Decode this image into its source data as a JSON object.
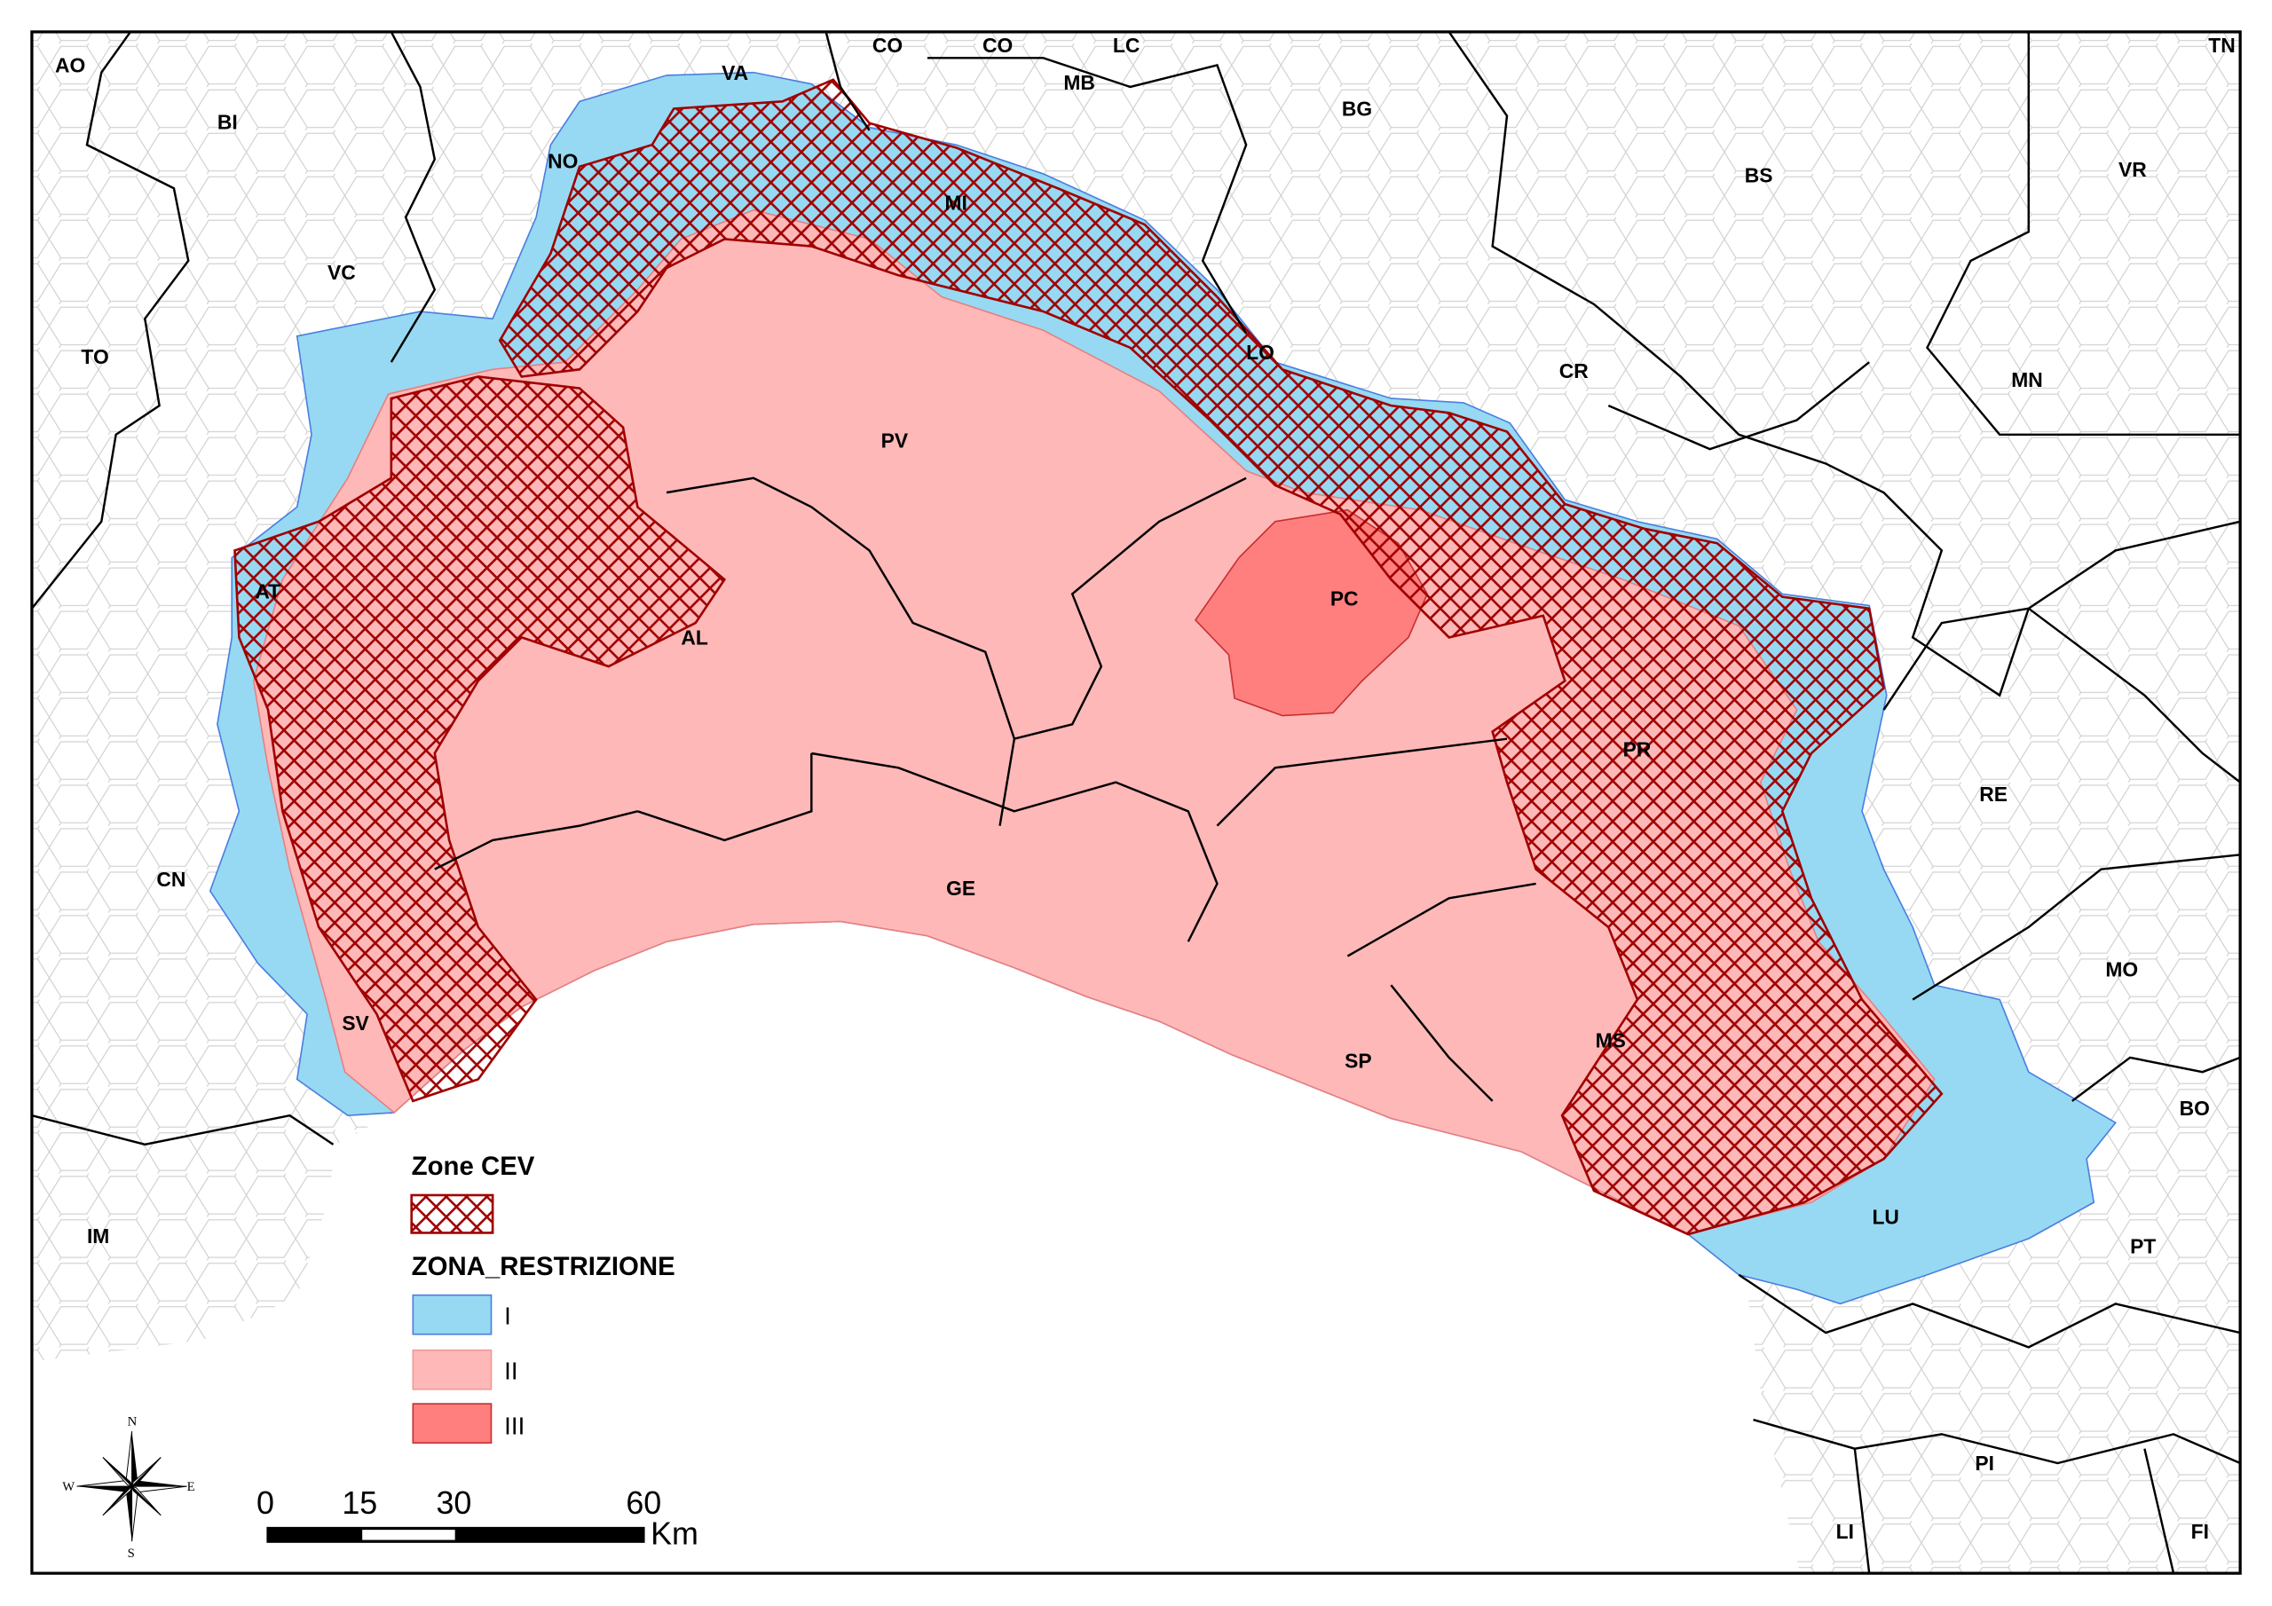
{
  "colors": {
    "zone_I": "#97d9f2",
    "zone_I_border": "#4a7fe0",
    "zone_II": "#ffb8b8",
    "zone_II_border": "#e88080",
    "zone_III": "#ff7f7f",
    "zone_III_border": "#c83030",
    "cev_hatch": "#a00000",
    "province_border": "#000000",
    "municipal_border": "#c8c8c8"
  },
  "legend": {
    "cev_title": "Zone CEV",
    "restriction_title": "ZONA_RESTRIZIONE",
    "items": [
      {
        "label": "I",
        "icon": "blue-fill-swatch"
      },
      {
        "label": "II",
        "icon": "light-pink-fill-swatch"
      },
      {
        "label": "III",
        "icon": "red-fill-swatch"
      }
    ]
  },
  "scalebar": {
    "ticks": [
      "0",
      "15",
      "30",
      "60"
    ],
    "unit": "Km"
  },
  "compass": {
    "n": "N",
    "s": "S",
    "e": "E",
    "w": "W",
    "icon": "north-arrow-compass-rose"
  },
  "labels": [
    "AO",
    "BI",
    "VC",
    "TO",
    "NO",
    "VA",
    "CO",
    "CO",
    "LC",
    "MB",
    "BG",
    "TN",
    "BS",
    "VR",
    "MI",
    "LO",
    "CR",
    "MN",
    "PV",
    "AT",
    "AL",
    "PC",
    "PR",
    "RE",
    "CN",
    "GE",
    "MO",
    "SV",
    "SP",
    "MS",
    "BO",
    "LU",
    "IM",
    "PT",
    "PI",
    "LI",
    "FI"
  ]
}
